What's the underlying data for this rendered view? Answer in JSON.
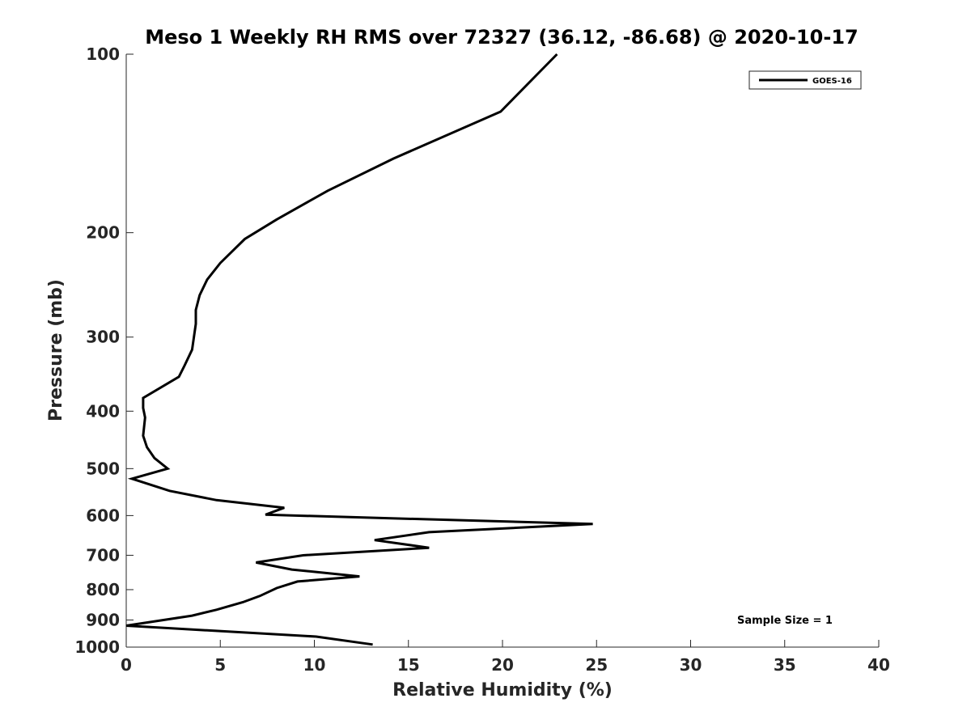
{
  "chart_data": {
    "type": "line",
    "title": "Meso 1 Weekly RH RMS over 72327 (36.12, -86.68) @ 2020-10-17",
    "xlabel": "Relative Humidity (%)",
    "ylabel": "Pressure (mb)",
    "xlim": [
      0,
      40
    ],
    "ylim": [
      100,
      1000
    ],
    "yscale": "log",
    "yreversed": true,
    "xticks": [
      0,
      5,
      10,
      15,
      20,
      25,
      30,
      35,
      40
    ],
    "yticks": [
      100,
      200,
      300,
      400,
      500,
      600,
      700,
      800,
      900,
      1000
    ],
    "grid": false,
    "legend_position": "top-right",
    "annotation": "Sample Size = 1",
    "series": [
      {
        "name": "GOES-16",
        "color": "#000000",
        "x": [
          22.9,
          19.9,
          14.2,
          10.7,
          8.0,
          6.3,
          5.0,
          4.3,
          3.9,
          3.7,
          3.7,
          3.5,
          3.1,
          2.8,
          0.9,
          0.9,
          1.0,
          0.9,
          1.1,
          1.5,
          2.2,
          0.3,
          2.3,
          4.8,
          8.4,
          7.4,
          24.8,
          16.1,
          13.2,
          16.1,
          9.4,
          6.9,
          8.8,
          12.4,
          9.1,
          8.0,
          7.1,
          6.2,
          4.8,
          3.5,
          0.0,
          10.1,
          13.1
        ],
        "y": [
          100,
          125,
          150,
          170,
          190,
          205,
          225,
          240,
          255,
          270,
          285,
          315,
          335,
          350,
          380,
          395,
          410,
          440,
          460,
          480,
          500,
          520,
          545,
          565,
          582,
          598,
          620,
          640,
          660,
          680,
          700,
          720,
          740,
          760,
          775,
          795,
          820,
          840,
          865,
          885,
          920,
          960,
          990
        ]
      }
    ]
  }
}
